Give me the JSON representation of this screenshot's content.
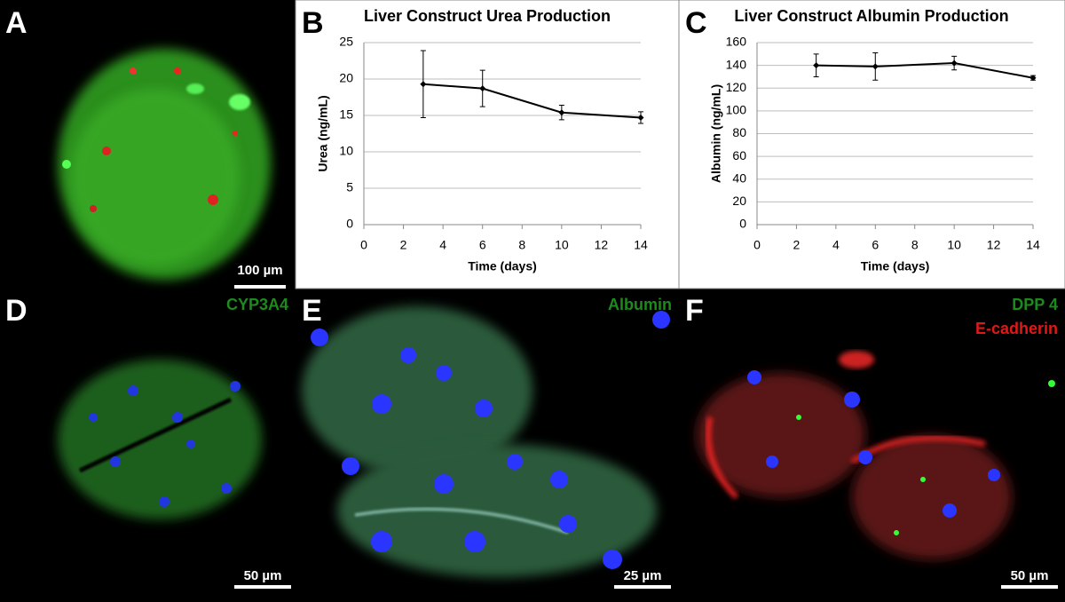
{
  "chart_data": [
    {
      "type": "line",
      "title": "Liver Construct Urea Production",
      "x_label": "Time (days)",
      "y_label": "Urea (ng/mL)",
      "x": [
        3,
        6,
        10,
        14
      ],
      "series": [
        {
          "color": "#000000",
          "values": [
            19.3,
            18.7,
            15.4,
            14.7
          ],
          "errors": [
            4.6,
            2.5,
            1.0,
            0.8
          ]
        }
      ],
      "xlim": [
        0,
        14
      ],
      "xticks": [
        0,
        2,
        4,
        6,
        8,
        10,
        12,
        14
      ],
      "ylim": [
        0,
        25
      ],
      "yticks": [
        0,
        5,
        10,
        15,
        20,
        25
      ],
      "grid": true
    },
    {
      "type": "line",
      "title": "Liver Construct Albumin Production",
      "x_label": "Time (days)",
      "y_label": "Albumin (ng/mL)",
      "x": [
        3,
        6,
        10,
        14
      ],
      "series": [
        {
          "color": "#000000",
          "values": [
            140,
            139,
            142,
            129
          ],
          "errors": [
            10,
            12,
            6,
            2
          ]
        }
      ],
      "xlim": [
        0,
        14
      ],
      "xticks": [
        0,
        2,
        4,
        6,
        8,
        10,
        12,
        14
      ],
      "ylim": [
        0,
        160
      ],
      "yticks": [
        0,
        20,
        40,
        60,
        80,
        100,
        120,
        140,
        160
      ],
      "grid": true
    }
  ],
  "panels": {
    "letters": [
      "A",
      "B",
      "C",
      "D",
      "E",
      "F"
    ],
    "stains": [
      "CYP3A4",
      "Albumin",
      "DPP 4",
      "E-cadherin"
    ],
    "scale_bars": [
      "100 µm",
      "50 µm",
      "25 µm",
      "50 µm"
    ]
  }
}
